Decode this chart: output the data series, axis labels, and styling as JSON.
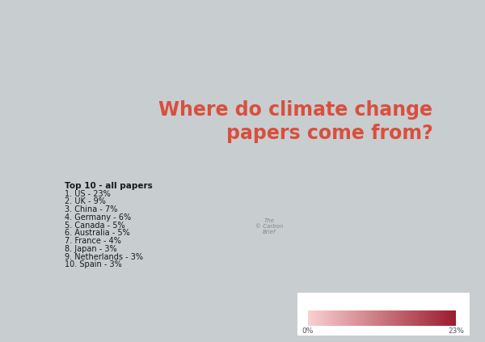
{
  "title_line1": "Where do climate change",
  "title_line2": "papers come from?",
  "title_color": "#d94f3d",
  "title_fontsize": 17,
  "background_color": "#c8cdd0",
  "legend_title": "Top 10 - all papers",
  "legend_entries": [
    "1. US - 23%",
    "2. UK - 9%",
    "3. China - 7%",
    "4. Germany - 6%",
    "5. Canada - 5%",
    "6. Australia - 5%",
    "7. France - 4%",
    "8. Japan - 3%",
    "9. Netherlands - 3%",
    "10. Spain - 3%"
  ],
  "country_data": {
    "United States of America": 23,
    "United Kingdom": 9,
    "China": 7,
    "Germany": 6,
    "Canada": 5,
    "Australia": 5,
    "France": 4,
    "Japan": 3,
    "Netherlands": 3,
    "Spain": 3
  },
  "colorbar_min": 0,
  "colorbar_max": 23,
  "colorbar_label_min": "0%",
  "colorbar_label_max": "23%",
  "cmap_start": "#f9d0d0",
  "cmap_end": "#9b1c2e",
  "no_data_color": "#e8d0d0",
  "ocean_color": "#c8cdd0",
  "border_color": "#ffffff",
  "credit_text": "The\n© Carbon\nBrief"
}
